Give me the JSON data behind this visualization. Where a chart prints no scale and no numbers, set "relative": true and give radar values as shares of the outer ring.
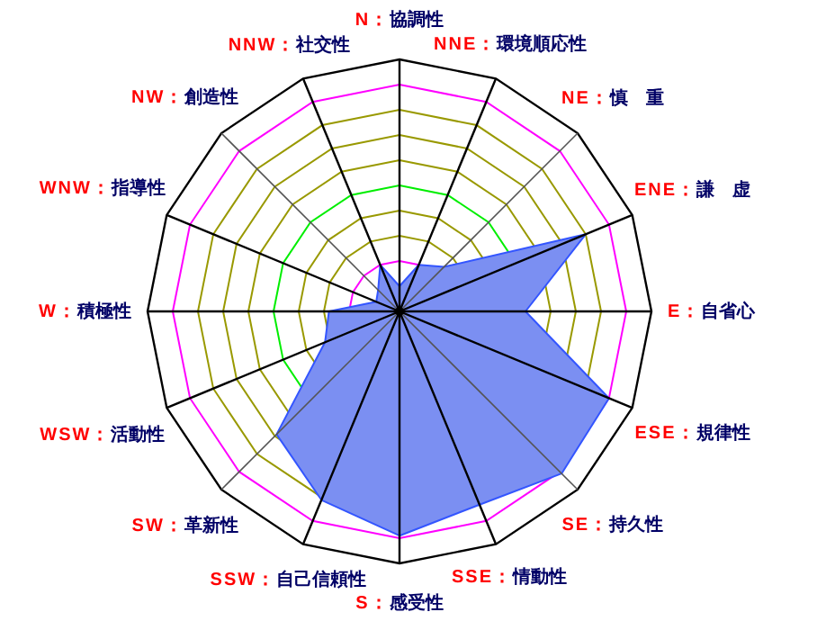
{
  "chart_data": {
    "type": "radar",
    "relative": true,
    "grid": true,
    "categories": [
      "N：協調性",
      "NNE：環境順応性",
      "NE：慎　重",
      "ENE：謙　虚",
      "E：自省心",
      "ESE：規律性",
      "SE：持久性",
      "SSE：情動性",
      "S：感受性",
      "SSW：自己信頼性",
      "SW：革新性",
      "WSW：活動性",
      "W：積極性",
      "WNW：指導性",
      "NW：創造性",
      "NNW：社交性"
    ],
    "series": [
      {
        "color": "#7b8ff2",
        "values": [
          0.1,
          0.2,
          0.25,
          0.8,
          0.5,
          0.9,
          0.91,
          0.83,
          0.89,
          0.81,
          0.69,
          0.32,
          0.28,
          0.1,
          0.12,
          0.2
        ]
      }
    ]
  }
}
